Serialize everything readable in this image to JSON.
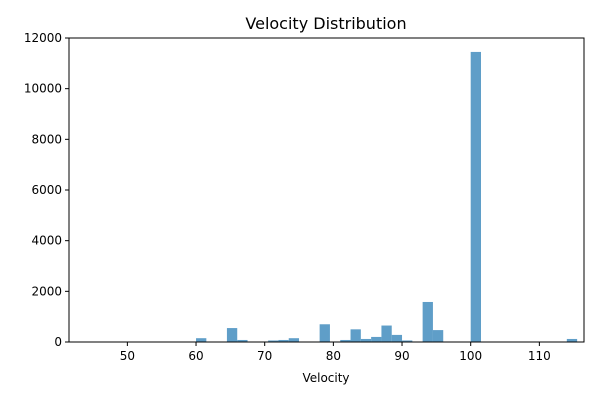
{
  "chart_data": {
    "type": "bar",
    "title": "Velocity Distribution",
    "xlabel": "Velocity",
    "ylabel": "",
    "xlim": [
      41.5,
      116.5
    ],
    "ylim": [
      0,
      12000
    ],
    "xticks": [
      50,
      60,
      70,
      80,
      90,
      100,
      110
    ],
    "yticks": [
      0,
      2000,
      4000,
      6000,
      8000,
      10000,
      12000
    ],
    "bar_color": "#5f9ec8",
    "bin_width": 1.5,
    "grid": false,
    "bars": [
      {
        "x": 60.0,
        "value": 150
      },
      {
        "x": 64.5,
        "value": 550
      },
      {
        "x": 66.0,
        "value": 80
      },
      {
        "x": 70.5,
        "value": 60
      },
      {
        "x": 72.0,
        "value": 80
      },
      {
        "x": 73.5,
        "value": 150
      },
      {
        "x": 78.0,
        "value": 700
      },
      {
        "x": 81.0,
        "value": 80
      },
      {
        "x": 82.5,
        "value": 500
      },
      {
        "x": 84.0,
        "value": 120
      },
      {
        "x": 85.5,
        "value": 200
      },
      {
        "x": 87.0,
        "value": 650
      },
      {
        "x": 88.5,
        "value": 280
      },
      {
        "x": 90.0,
        "value": 60
      },
      {
        "x": 93.0,
        "value": 1580
      },
      {
        "x": 94.5,
        "value": 470
      },
      {
        "x": 100.0,
        "value": 11450
      },
      {
        "x": 114.0,
        "value": 120
      }
    ]
  }
}
